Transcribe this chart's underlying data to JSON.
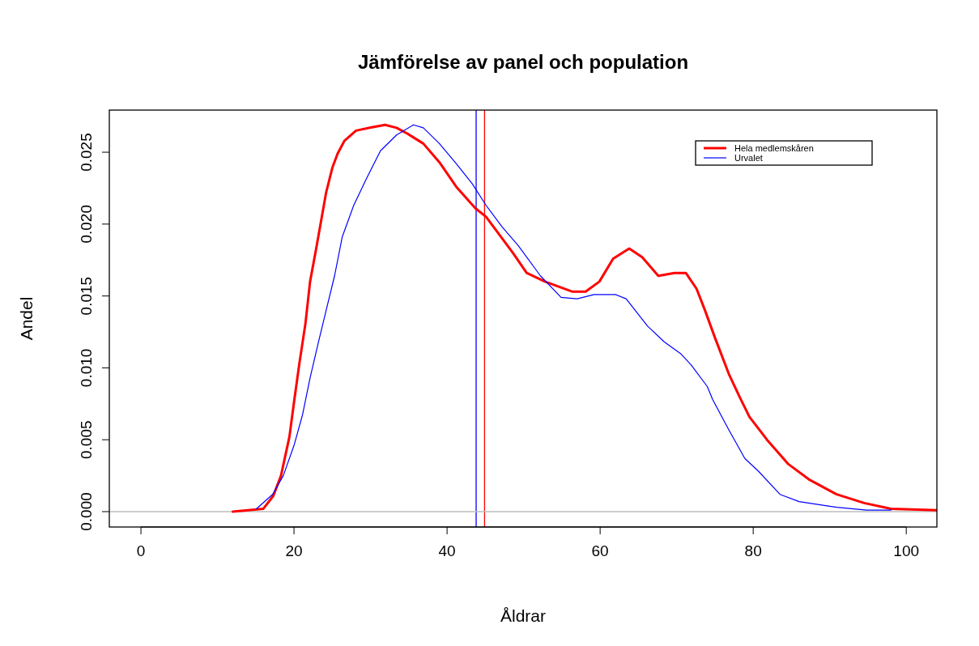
{
  "chart_data": {
    "type": "line",
    "title": "Jämförelse av panel och population",
    "xlabel": "Åldrar",
    "ylabel": "Andel",
    "xlim": [
      -4.13,
      104
    ],
    "ylim": [
      -0.00107,
      0.02793
    ],
    "xticks": [
      0,
      20,
      40,
      60,
      80,
      100
    ],
    "yticks": [
      {
        "value": 0,
        "label": "0.000"
      },
      {
        "value": 0.005,
        "label": "0.005"
      },
      {
        "value": 0.01,
        "label": "0.010"
      },
      {
        "value": 0.015,
        "label": "0.015"
      },
      {
        "value": 0.02,
        "label": "0.020"
      },
      {
        "value": 0.025,
        "label": "0.025"
      }
    ],
    "legend": "top right",
    "grid": false,
    "line_style": "solid",
    "marker": "none",
    "series": [
      {
        "name": "Hela medlemskåren",
        "color": "#ff0000",
        "x": [
          12,
          16,
          17.3,
          18.3,
          19.4,
          20,
          20.7,
          21.5,
          22.1,
          22.9,
          23.6,
          24.2,
          25,
          25.7,
          26.6,
          28.1,
          29.9,
          31.9,
          33.4,
          34.8,
          36.9,
          39,
          41.2,
          43.7,
          45.1,
          48.6,
          50.4,
          52.8,
          56.4,
          58.1,
          59.9,
          61.7,
          63.8,
          65.5,
          67.6,
          69.7,
          71.2,
          72.6,
          73.7,
          75,
          76.8,
          78.2,
          79.5,
          81.8,
          84.6,
          87.4,
          90.9,
          94.5,
          98,
          104
        ],
        "values": [
          0,
          0.0002,
          0.0011,
          0.0025,
          0.0052,
          0.0076,
          0.0103,
          0.0131,
          0.016,
          0.0183,
          0.0204,
          0.0222,
          0.0239,
          0.0249,
          0.0258,
          0.0265,
          0.0267,
          0.0269,
          0.0267,
          0.0263,
          0.0256,
          0.0243,
          0.0226,
          0.0211,
          0.0205,
          0.018,
          0.0166,
          0.016,
          0.0153,
          0.0153,
          0.016,
          0.0176,
          0.0183,
          0.0177,
          0.0164,
          0.0166,
          0.0166,
          0.0155,
          0.014,
          0.0121,
          0.0096,
          0.008,
          0.0066,
          0.005,
          0.0033,
          0.0022,
          0.0012,
          0.0006,
          0.0002,
          0.0001
        ]
      },
      {
        "name": "Urvalet",
        "color": "#0000ff",
        "x": [
          15.1,
          17.2,
          18.6,
          20,
          21.1,
          22.1,
          23.2,
          24.2,
          25.3,
          26.3,
          27.8,
          29.5,
          31.3,
          33.4,
          35.6,
          36.9,
          39,
          41.2,
          43.3,
          45.1,
          47.2,
          49.3,
          52.2,
          54.9,
          57,
          59.2,
          62,
          63.4,
          66.2,
          68.4,
          70.5,
          71.9,
          74,
          74.7,
          76.8,
          78.9,
          80.7,
          83.5,
          86,
          90.9,
          94.8,
          98
        ],
        "values": [
          0.0002,
          0.0012,
          0.0025,
          0.0046,
          0.0067,
          0.0093,
          0.0118,
          0.014,
          0.0164,
          0.0191,
          0.0213,
          0.0232,
          0.0251,
          0.0262,
          0.0269,
          0.0267,
          0.0256,
          0.0242,
          0.0228,
          0.0213,
          0.0198,
          0.0185,
          0.0164,
          0.0149,
          0.0148,
          0.0151,
          0.0151,
          0.0148,
          0.0129,
          0.0118,
          0.011,
          0.0102,
          0.0087,
          0.0078,
          0.0057,
          0.0037,
          0.0028,
          0.0012,
          0.0007,
          0.0003,
          0.0001,
          0.0001
        ]
      }
    ],
    "ref_lines": [
      {
        "axis": "x",
        "value": 43.8,
        "color": "#0000ff"
      },
      {
        "axis": "x",
        "value": 44.9,
        "color": "#ff0000"
      },
      {
        "axis": "y",
        "value": 0,
        "color": "#bebebe"
      }
    ]
  }
}
